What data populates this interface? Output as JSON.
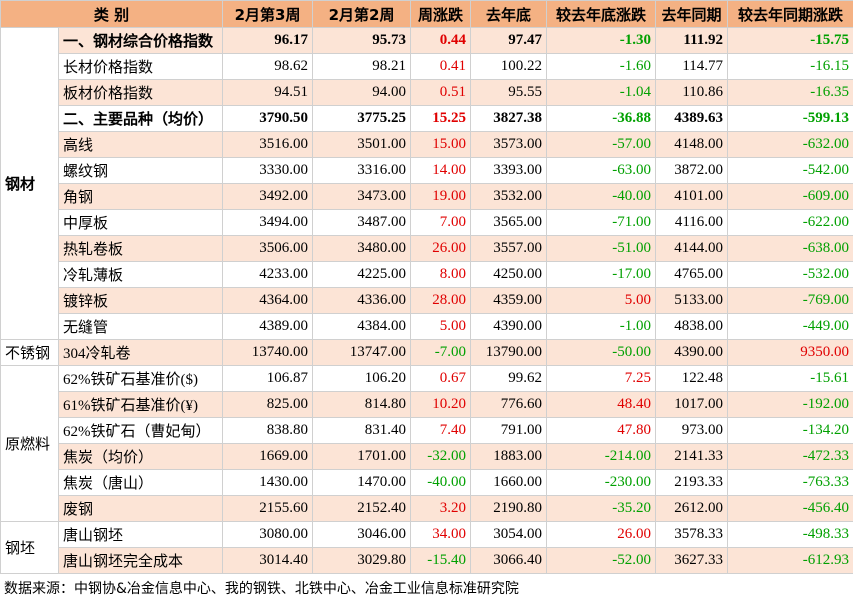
{
  "table": {
    "header": [
      "类 别",
      "2月第3周",
      "2月第2周",
      "周涨跌",
      "去年底",
      "较去年底涨跌",
      "去年同期",
      "较去年同期涨跌"
    ],
    "groups": [
      {
        "name": "钢材",
        "rows": [
          {
            "bold": true,
            "cells": [
              "一、钢材综合价格指数",
              "96.17",
              "95.73",
              "0.44",
              "97.47",
              "-1.30",
              "111.92",
              "-15.75"
            ]
          },
          {
            "cells": [
              "长材价格指数",
              "98.62",
              "98.21",
              "0.41",
              "100.22",
              "-1.60",
              "114.77",
              "-16.15"
            ]
          },
          {
            "cells": [
              "板材价格指数",
              "94.51",
              "94.00",
              "0.51",
              "95.55",
              "-1.04",
              "110.86",
              "-16.35"
            ]
          },
          {
            "bold": true,
            "cells": [
              "二、主要品种（均价）",
              "3790.50",
              "3775.25",
              "15.25",
              "3827.38",
              "-36.88",
              "4389.63",
              "-599.13"
            ]
          },
          {
            "cells": [
              "高线",
              "3516.00",
              "3501.00",
              "15.00",
              "3573.00",
              "-57.00",
              "4148.00",
              "-632.00"
            ]
          },
          {
            "cells": [
              "螺纹钢",
              "3330.00",
              "3316.00",
              "14.00",
              "3393.00",
              "-63.00",
              "3872.00",
              "-542.00"
            ]
          },
          {
            "cells": [
              "角钢",
              "3492.00",
              "3473.00",
              "19.00",
              "3532.00",
              "-40.00",
              "4101.00",
              "-609.00"
            ]
          },
          {
            "cells": [
              "中厚板",
              "3494.00",
              "3487.00",
              "7.00",
              "3565.00",
              "-71.00",
              "4116.00",
              "-622.00"
            ]
          },
          {
            "cells": [
              "热轧卷板",
              "3506.00",
              "3480.00",
              "26.00",
              "3557.00",
              "-51.00",
              "4144.00",
              "-638.00"
            ]
          },
          {
            "cells": [
              "冷轧薄板",
              "4233.00",
              "4225.00",
              "8.00",
              "4250.00",
              "-17.00",
              "4765.00",
              "-532.00"
            ]
          },
          {
            "cells": [
              "镀锌板",
              "4364.00",
              "4336.00",
              "28.00",
              "4359.00",
              "5.00",
              "5133.00",
              "-769.00"
            ]
          },
          {
            "cells": [
              "无缝管",
              "4389.00",
              "4384.00",
              "5.00",
              "4390.00",
              "-1.00",
              "4838.00",
              "-449.00"
            ]
          }
        ]
      },
      {
        "name": "不锈钢",
        "rows": [
          {
            "cells": [
              "304冷轧卷",
              "13740.00",
              "13747.00",
              "-7.00",
              "13790.00",
              "-50.00",
              "4390.00",
              "9350.00"
            ]
          }
        ]
      },
      {
        "name": "原燃料",
        "rows": [
          {
            "cells": [
              "62%铁矿石基准价($)",
              "106.87",
              "106.20",
              "0.67",
              "99.62",
              "7.25",
              "122.48",
              "-15.61"
            ]
          },
          {
            "cells": [
              "61%铁矿石基准价(¥)",
              "825.00",
              "814.80",
              "10.20",
              "776.60",
              "48.40",
              "1017.00",
              "-192.00"
            ]
          },
          {
            "cells": [
              "62%铁矿石（曹妃甸）",
              "838.80",
              "831.40",
              "7.40",
              "791.00",
              "47.80",
              "973.00",
              "-134.20"
            ]
          },
          {
            "cells": [
              "焦炭（均价）",
              "1669.00",
              "1701.00",
              "-32.00",
              "1883.00",
              "-214.00",
              "2141.33",
              "-472.33"
            ]
          },
          {
            "cells": [
              "焦炭（唐山）",
              "1430.00",
              "1470.00",
              "-40.00",
              "1660.00",
              "-230.00",
              "2193.33",
              "-763.33"
            ]
          },
          {
            "cells": [
              "废钢",
              "2155.60",
              "2152.40",
              "3.20",
              "2190.80",
              "-35.20",
              "2612.00",
              "-456.40"
            ]
          }
        ]
      },
      {
        "name": "钢坯",
        "rows": [
          {
            "cells": [
              "唐山钢坯",
              "3080.00",
              "3046.00",
              "34.00",
              "3054.00",
              "26.00",
              "3578.33",
              "-498.33"
            ]
          },
          {
            "cells": [
              "唐山钢坯完全成本",
              "3014.40",
              "3029.80",
              "-15.40",
              "3066.40",
              "-52.00",
              "3627.33",
              "-612.93"
            ]
          }
        ]
      }
    ],
    "source": "数据来源：中钢协&冶金信息中心、我的钢铁、北铁中心、冶金工业信息标准研究院"
  }
}
